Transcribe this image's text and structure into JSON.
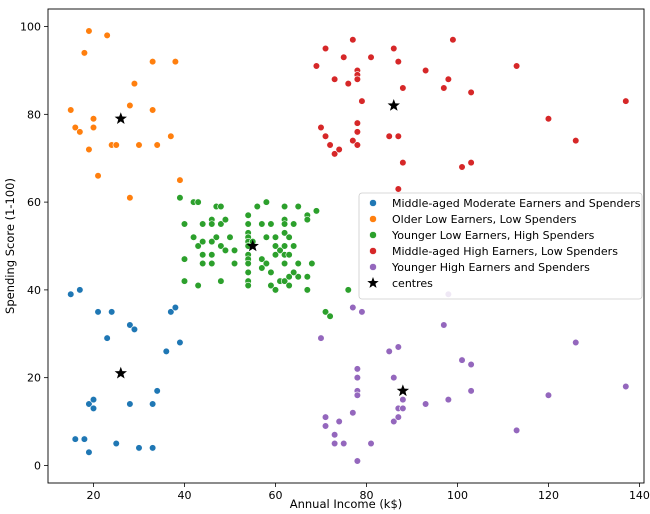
{
  "chart_data": {
    "type": "scatter",
    "xlabel": "Annual Income (k$)",
    "ylabel": "Spending Score (1-100)",
    "xlim": [
      10,
      141
    ],
    "ylim": [
      -4,
      104
    ],
    "xticks": [
      20,
      40,
      60,
      80,
      100,
      120,
      140
    ],
    "yticks": [
      0,
      20,
      40,
      60,
      80,
      100
    ],
    "grid": false,
    "legend_position": "center-right",
    "series": [
      {
        "name": "Middle-aged Moderate Earners and Spenders",
        "color": "#1f77b4",
        "points": [
          [
            15,
            39
          ],
          [
            17,
            40
          ],
          [
            21,
            35
          ],
          [
            24,
            35
          ],
          [
            23,
            29
          ],
          [
            28,
            32
          ],
          [
            29,
            31
          ],
          [
            37,
            35
          ],
          [
            38,
            36
          ],
          [
            36,
            26
          ],
          [
            39,
            28
          ],
          [
            16,
            6
          ],
          [
            18,
            6
          ],
          [
            19,
            3
          ],
          [
            19,
            14
          ],
          [
            20,
            15
          ],
          [
            20,
            13
          ],
          [
            25,
            5
          ],
          [
            28,
            14
          ],
          [
            30,
            4
          ],
          [
            33,
            4
          ],
          [
            33,
            14
          ],
          [
            34,
            17
          ]
        ]
      },
      {
        "name": "Older Low Earners, Low Spenders",
        "color": "#ff7f0e",
        "points": [
          [
            19,
            99
          ],
          [
            23,
            98
          ],
          [
            18,
            94
          ],
          [
            33,
            92
          ],
          [
            38,
            92
          ],
          [
            29,
            87
          ],
          [
            15,
            81
          ],
          [
            20,
            79
          ],
          [
            28,
            82
          ],
          [
            33,
            81
          ],
          [
            16,
            77
          ],
          [
            17,
            76
          ],
          [
            20,
            77
          ],
          [
            37,
            75
          ],
          [
            24,
            73
          ],
          [
            25,
            73
          ],
          [
            30,
            73
          ],
          [
            34,
            73
          ],
          [
            19,
            72
          ],
          [
            39,
            65
          ],
          [
            21,
            66
          ],
          [
            28,
            61
          ]
        ]
      },
      {
        "name": "Younger Low Earners, High Spenders",
        "color": "#2ca02c",
        "points": [
          [
            39,
            61
          ],
          [
            42,
            60
          ],
          [
            43,
            60
          ],
          [
            47,
            59
          ],
          [
            48,
            59
          ],
          [
            56,
            59
          ],
          [
            58,
            60
          ],
          [
            62,
            59
          ],
          [
            65,
            59
          ],
          [
            69,
            58
          ],
          [
            67,
            57
          ],
          [
            40,
            55
          ],
          [
            44,
            55
          ],
          [
            46,
            56
          ],
          [
            46,
            55
          ],
          [
            48,
            55
          ],
          [
            49,
            56
          ],
          [
            54,
            57
          ],
          [
            54,
            55
          ],
          [
            57,
            55
          ],
          [
            59,
            55
          ],
          [
            62,
            56
          ],
          [
            62,
            55
          ],
          [
            64,
            55
          ],
          [
            67,
            56
          ],
          [
            42,
            52
          ],
          [
            47,
            52
          ],
          [
            50,
            52
          ],
          [
            54,
            53
          ],
          [
            54,
            52
          ],
          [
            58,
            52
          ],
          [
            60,
            52
          ],
          [
            62,
            53
          ],
          [
            63,
            52
          ],
          [
            43,
            50
          ],
          [
            44,
            51
          ],
          [
            46,
            51
          ],
          [
            48,
            50
          ],
          [
            54,
            51
          ],
          [
            54,
            50
          ],
          [
            60,
            50
          ],
          [
            61,
            49
          ],
          [
            62,
            50
          ],
          [
            64,
            50
          ],
          [
            44,
            48
          ],
          [
            46,
            48
          ],
          [
            49,
            49
          ],
          [
            54,
            48
          ],
          [
            54,
            47
          ],
          [
            57,
            47
          ],
          [
            60,
            48
          ],
          [
            62,
            48
          ],
          [
            63,
            48
          ],
          [
            65,
            46
          ],
          [
            68,
            46
          ],
          [
            40,
            47
          ],
          [
            40,
            42
          ],
          [
            43,
            41
          ],
          [
            44,
            46
          ],
          [
            46,
            46
          ],
          [
            48,
            42
          ],
          [
            51,
            46
          ],
          [
            54,
            46
          ],
          [
            54,
            44
          ],
          [
            54,
            42
          ],
          [
            54,
            41
          ],
          [
            58,
            46
          ],
          [
            59,
            41
          ],
          [
            60,
            40
          ],
          [
            61,
            42
          ],
          [
            62,
            42
          ],
          [
            63,
            43
          ],
          [
            63,
            41
          ],
          [
            65,
            43
          ],
          [
            67,
            43
          ],
          [
            67,
            40
          ],
          [
            71,
            35
          ],
          [
            72,
            34
          ],
          [
            76,
            40
          ],
          [
            57,
            45
          ],
          [
            59,
            44
          ],
          [
            51,
            49
          ],
          [
            55,
            51
          ],
          [
            62,
            46
          ],
          [
            64,
            44
          ]
        ]
      },
      {
        "name": "Middle-aged High Earners, Low Spenders",
        "color": "#d62728",
        "points": [
          [
            71,
            95
          ],
          [
            77,
            97
          ],
          [
            86,
            95
          ],
          [
            99,
            97
          ],
          [
            69,
            91
          ],
          [
            75,
            93
          ],
          [
            78,
            90
          ],
          [
            81,
            93
          ],
          [
            87,
            92
          ],
          [
            93,
            90
          ],
          [
            113,
            91
          ],
          [
            73,
            88
          ],
          [
            76,
            87
          ],
          [
            78,
            89
          ],
          [
            78,
            88
          ],
          [
            98,
            88
          ],
          [
            97,
            86
          ],
          [
            103,
            85
          ],
          [
            79,
            83
          ],
          [
            88,
            86
          ],
          [
            137,
            83
          ],
          [
            70,
            77
          ],
          [
            71,
            75
          ],
          [
            78,
            78
          ],
          [
            78,
            76
          ],
          [
            85,
            75
          ],
          [
            87,
            75
          ],
          [
            120,
            79
          ],
          [
            126,
            74
          ],
          [
            72,
            73
          ],
          [
            73,
            71
          ],
          [
            74,
            72
          ],
          [
            77,
            74
          ],
          [
            78,
            73
          ],
          [
            101,
            68
          ],
          [
            103,
            69
          ],
          [
            88,
            69
          ],
          [
            87,
            63
          ]
        ]
      },
      {
        "name": "Younger High Earners and Spenders",
        "color": "#9467bd",
        "points": [
          [
            70,
            29
          ],
          [
            77,
            36
          ],
          [
            79,
            35
          ],
          [
            98,
            39
          ],
          [
            97,
            32
          ],
          [
            87,
            27
          ],
          [
            85,
            26
          ],
          [
            101,
            24
          ],
          [
            103,
            23
          ],
          [
            126,
            28
          ],
          [
            78,
            22
          ],
          [
            78,
            20
          ],
          [
            86,
            20
          ],
          [
            78,
            17
          ],
          [
            78,
            16
          ],
          [
            88,
            15
          ],
          [
            98,
            15
          ],
          [
            103,
            17
          ],
          [
            120,
            16
          ],
          [
            137,
            18
          ],
          [
            77,
            12
          ],
          [
            87,
            13
          ],
          [
            88,
            13
          ],
          [
            93,
            14
          ],
          [
            71,
            11
          ],
          [
            71,
            9
          ],
          [
            74,
            10
          ],
          [
            86,
            10
          ],
          [
            87,
            11
          ],
          [
            113,
            8
          ],
          [
            73,
            7
          ],
          [
            73,
            5
          ],
          [
            75,
            5
          ],
          [
            81,
            5
          ],
          [
            78,
            1
          ]
        ]
      }
    ],
    "centres": {
      "name": "centres",
      "color": "#000000",
      "points": [
        [
          26,
          79
        ],
        [
          55,
          50
        ],
        [
          86,
          82
        ],
        [
          26,
          21
        ],
        [
          88,
          17
        ]
      ]
    }
  }
}
